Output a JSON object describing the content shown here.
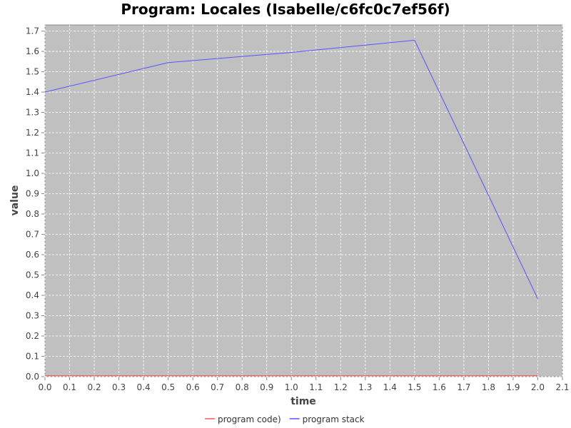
{
  "chart_data": {
    "type": "line",
    "title": "Program: Locales (Isabelle/c6fc0c7ef56f)",
    "xlabel": "time",
    "ylabel": "value",
    "xlim": [
      0,
      2.1
    ],
    "ylim": [
      0,
      1.73
    ],
    "xticks": [
      "0.0",
      "0.1",
      "0.2",
      "0.3",
      "0.4",
      "0.5",
      "0.6",
      "0.7",
      "0.8",
      "0.9",
      "1.0",
      "1.1",
      "1.2",
      "1.3",
      "1.4",
      "1.5",
      "1.6",
      "1.7",
      "1.8",
      "1.9",
      "2.0",
      "2.1"
    ],
    "yticks": [
      "0.0",
      "0.1",
      "0.2",
      "0.3",
      "0.4",
      "0.5",
      "0.6",
      "0.7",
      "0.8",
      "0.9",
      "1.0",
      "1.1",
      "1.2",
      "1.3",
      "1.4",
      "1.5",
      "1.6",
      "1.7"
    ],
    "grid": true,
    "legend_position": "bottom",
    "background": "#c0c0c0",
    "series": [
      {
        "name": "program code)",
        "color": "#ff5555",
        "x": [
          0,
          0.5,
          1.0,
          1.5,
          2.0
        ],
        "y": [
          0.005,
          0.005,
          0.005,
          0.005,
          0.005
        ]
      },
      {
        "name": "program stack",
        "color": "#5555ff",
        "x": [
          0,
          0.5,
          1.0,
          1.5,
          2.0
        ],
        "y": [
          1.4,
          1.545,
          1.595,
          1.655,
          0.383
        ]
      }
    ]
  }
}
